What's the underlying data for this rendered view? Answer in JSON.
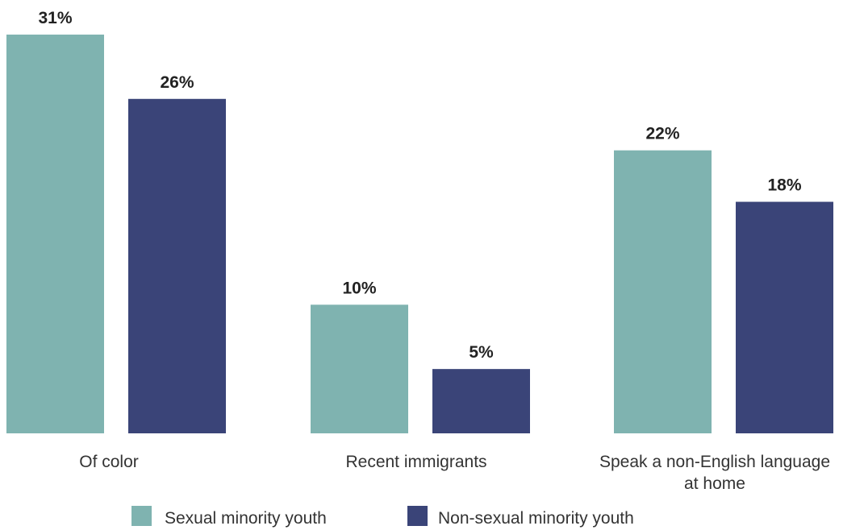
{
  "chart_data": {
    "type": "bar",
    "title": "",
    "xlabel": "",
    "ylabel": "",
    "ylim": [
      0,
      31
    ],
    "grid": false,
    "legend_placement": "bottom-center",
    "value_suffix": "%",
    "categories": [
      [
        "Of color"
      ],
      [
        "Recent immigrants"
      ],
      [
        "Speak a non-English language",
        "at home"
      ]
    ],
    "series": [
      {
        "name": "Sexual minority youth",
        "values": [
          31,
          10,
          22
        ],
        "color": "#7fb3b0"
      },
      {
        "name": "Non-sexual minority youth",
        "values": [
          26,
          5,
          18
        ],
        "color": "#3a4478"
      }
    ]
  }
}
